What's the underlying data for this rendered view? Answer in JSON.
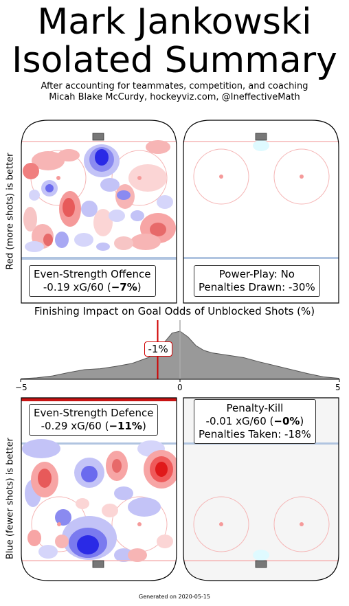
{
  "title_line1": "Mark Jankowski",
  "title_line2": "Isolated Summary",
  "subtitle_line1": "After accounting for teammates, competition, and coaching",
  "subtitle_line2": "Micah Blake McCurdy, hockeyviz.com, @IneffectiveMath",
  "ylabel_top": "Red (more shots) is better",
  "ylabel_bottom": "Blue (fewer shots) is better",
  "panels": {
    "es_offence": {
      "line1": "Even-Strength Offence",
      "line2_prefix": "-0.19 xG/60 (",
      "line2_bold": "−7%",
      "line2_suffix": ")"
    },
    "power_play": {
      "line1": "Power-Play: No",
      "line2": "Penalties Drawn: -30%"
    },
    "es_defence": {
      "line1": "Even-Strength Defence",
      "line2_prefix": "-0.29 xG/60 (",
      "line2_bold": "−11%",
      "line2_suffix": ")"
    },
    "penalty_kill": {
      "line1": "Penalty-Kill",
      "line2_prefix": "-0.01 xG/60 (",
      "line2_bold": "−0%",
      "line2_suffix": ")",
      "line3": "Penalties Taken: -18%"
    }
  },
  "chart_data": {
    "type": "area",
    "title": "Finishing Impact on Goal Odds of Unblocked Shots (%)",
    "xlim": [
      -5,
      5
    ],
    "xticks": [
      "−5",
      "0",
      "5"
    ],
    "x": [
      -5,
      -4.5,
      -4,
      -3.5,
      -3,
      -2.5,
      -2,
      -1.5,
      -1,
      -0.75,
      -0.5,
      -0.25,
      0,
      0.25,
      0.5,
      0.75,
      1,
      1.5,
      2,
      2.5,
      3,
      3.5,
      4,
      4.5,
      5
    ],
    "density": [
      0.01,
      0.03,
      0.07,
      0.14,
      0.2,
      0.22,
      0.27,
      0.33,
      0.45,
      0.55,
      0.76,
      0.96,
      1.0,
      0.88,
      0.7,
      0.6,
      0.55,
      0.5,
      0.45,
      0.36,
      0.28,
      0.2,
      0.12,
      0.05,
      0.02
    ],
    "marker_value": -0.7,
    "marker_label": "-1%",
    "colors": {
      "fill": "#999999",
      "line": "#555555",
      "marker": "#d00000",
      "zero": "#aaaaaa"
    }
  },
  "footer": "Generated on 2020-05-15",
  "colors": {
    "red": "#e0191a",
    "blue": "#1a1ae6",
    "blue_line": "#b0c4e0",
    "red_line": "#f5b5b5",
    "crease": "#dffaff",
    "net": "#777777"
  }
}
